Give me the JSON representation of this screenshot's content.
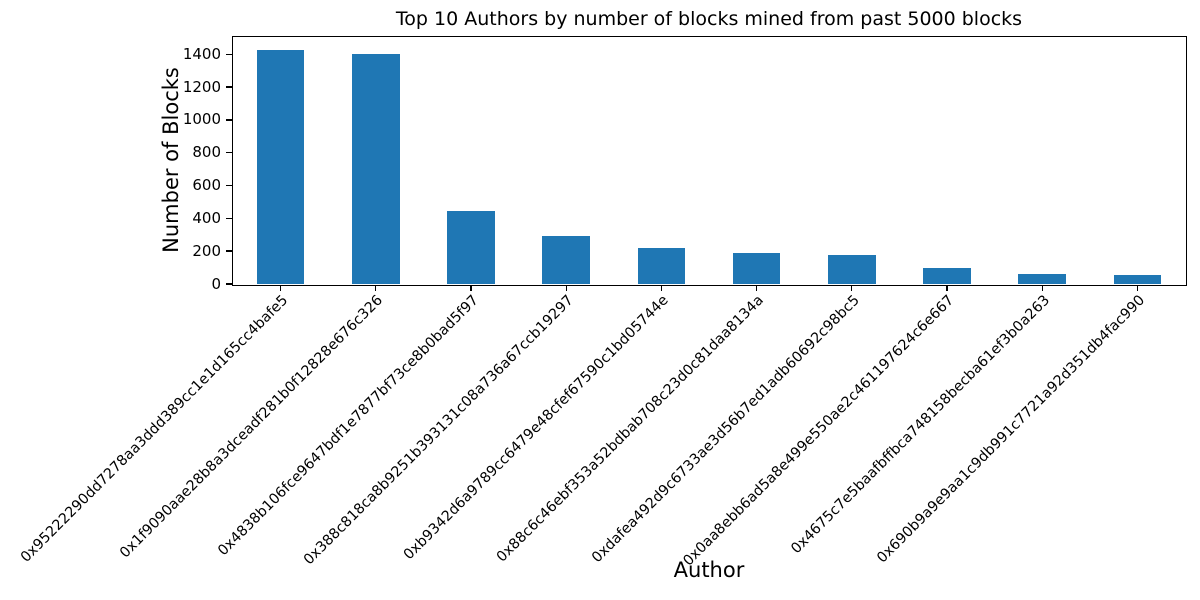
{
  "chart_data": {
    "type": "bar",
    "title": "Top 10 Authors by number of blocks mined from past 5000 blocks",
    "xlabel": "Author",
    "ylabel": "Number of Blocks",
    "categories": [
      "0x95222290dd7278aa3ddd389cc1e1d165cc4bafe5",
      "0x1f9090aae28b8a3dceadf281b0f12828e676c326",
      "0x4838b106fce9647bdf1e7877bf73ce8b0bad5f97",
      "0x388c818ca8b9251b393131c08a736a67ccb19297",
      "0xb9342d6a9789cc6479e48cfef67590c1bd05744e",
      "0x88c6c46ebf353a52bdbab708c23d0c81daa8134a",
      "0xdafea492d9c6733ae3d56b7ed1adb60692c98bc5",
      "0x0aa8ebb6ad5a8e499e550ae2c461197624c6e667",
      "0x4675c7e5baafbffbca748158becba61ef3b0a263",
      "0x690b9a9e9aa1c9db991c7721a92d351db4fac990"
    ],
    "values": [
      1425,
      1400,
      447,
      290,
      220,
      188,
      174,
      97,
      62,
      55
    ],
    "yticks": [
      0,
      200,
      400,
      600,
      800,
      1000,
      1200,
      1400
    ],
    "ylim": [
      0,
      1506
    ],
    "bar_color": "#1f77b4",
    "axis_color": "#000000",
    "background_color": "#ffffff",
    "grid": false,
    "legend": null,
    "x_tick_rotation_deg": 45,
    "bar_width_fraction": 0.5
  }
}
